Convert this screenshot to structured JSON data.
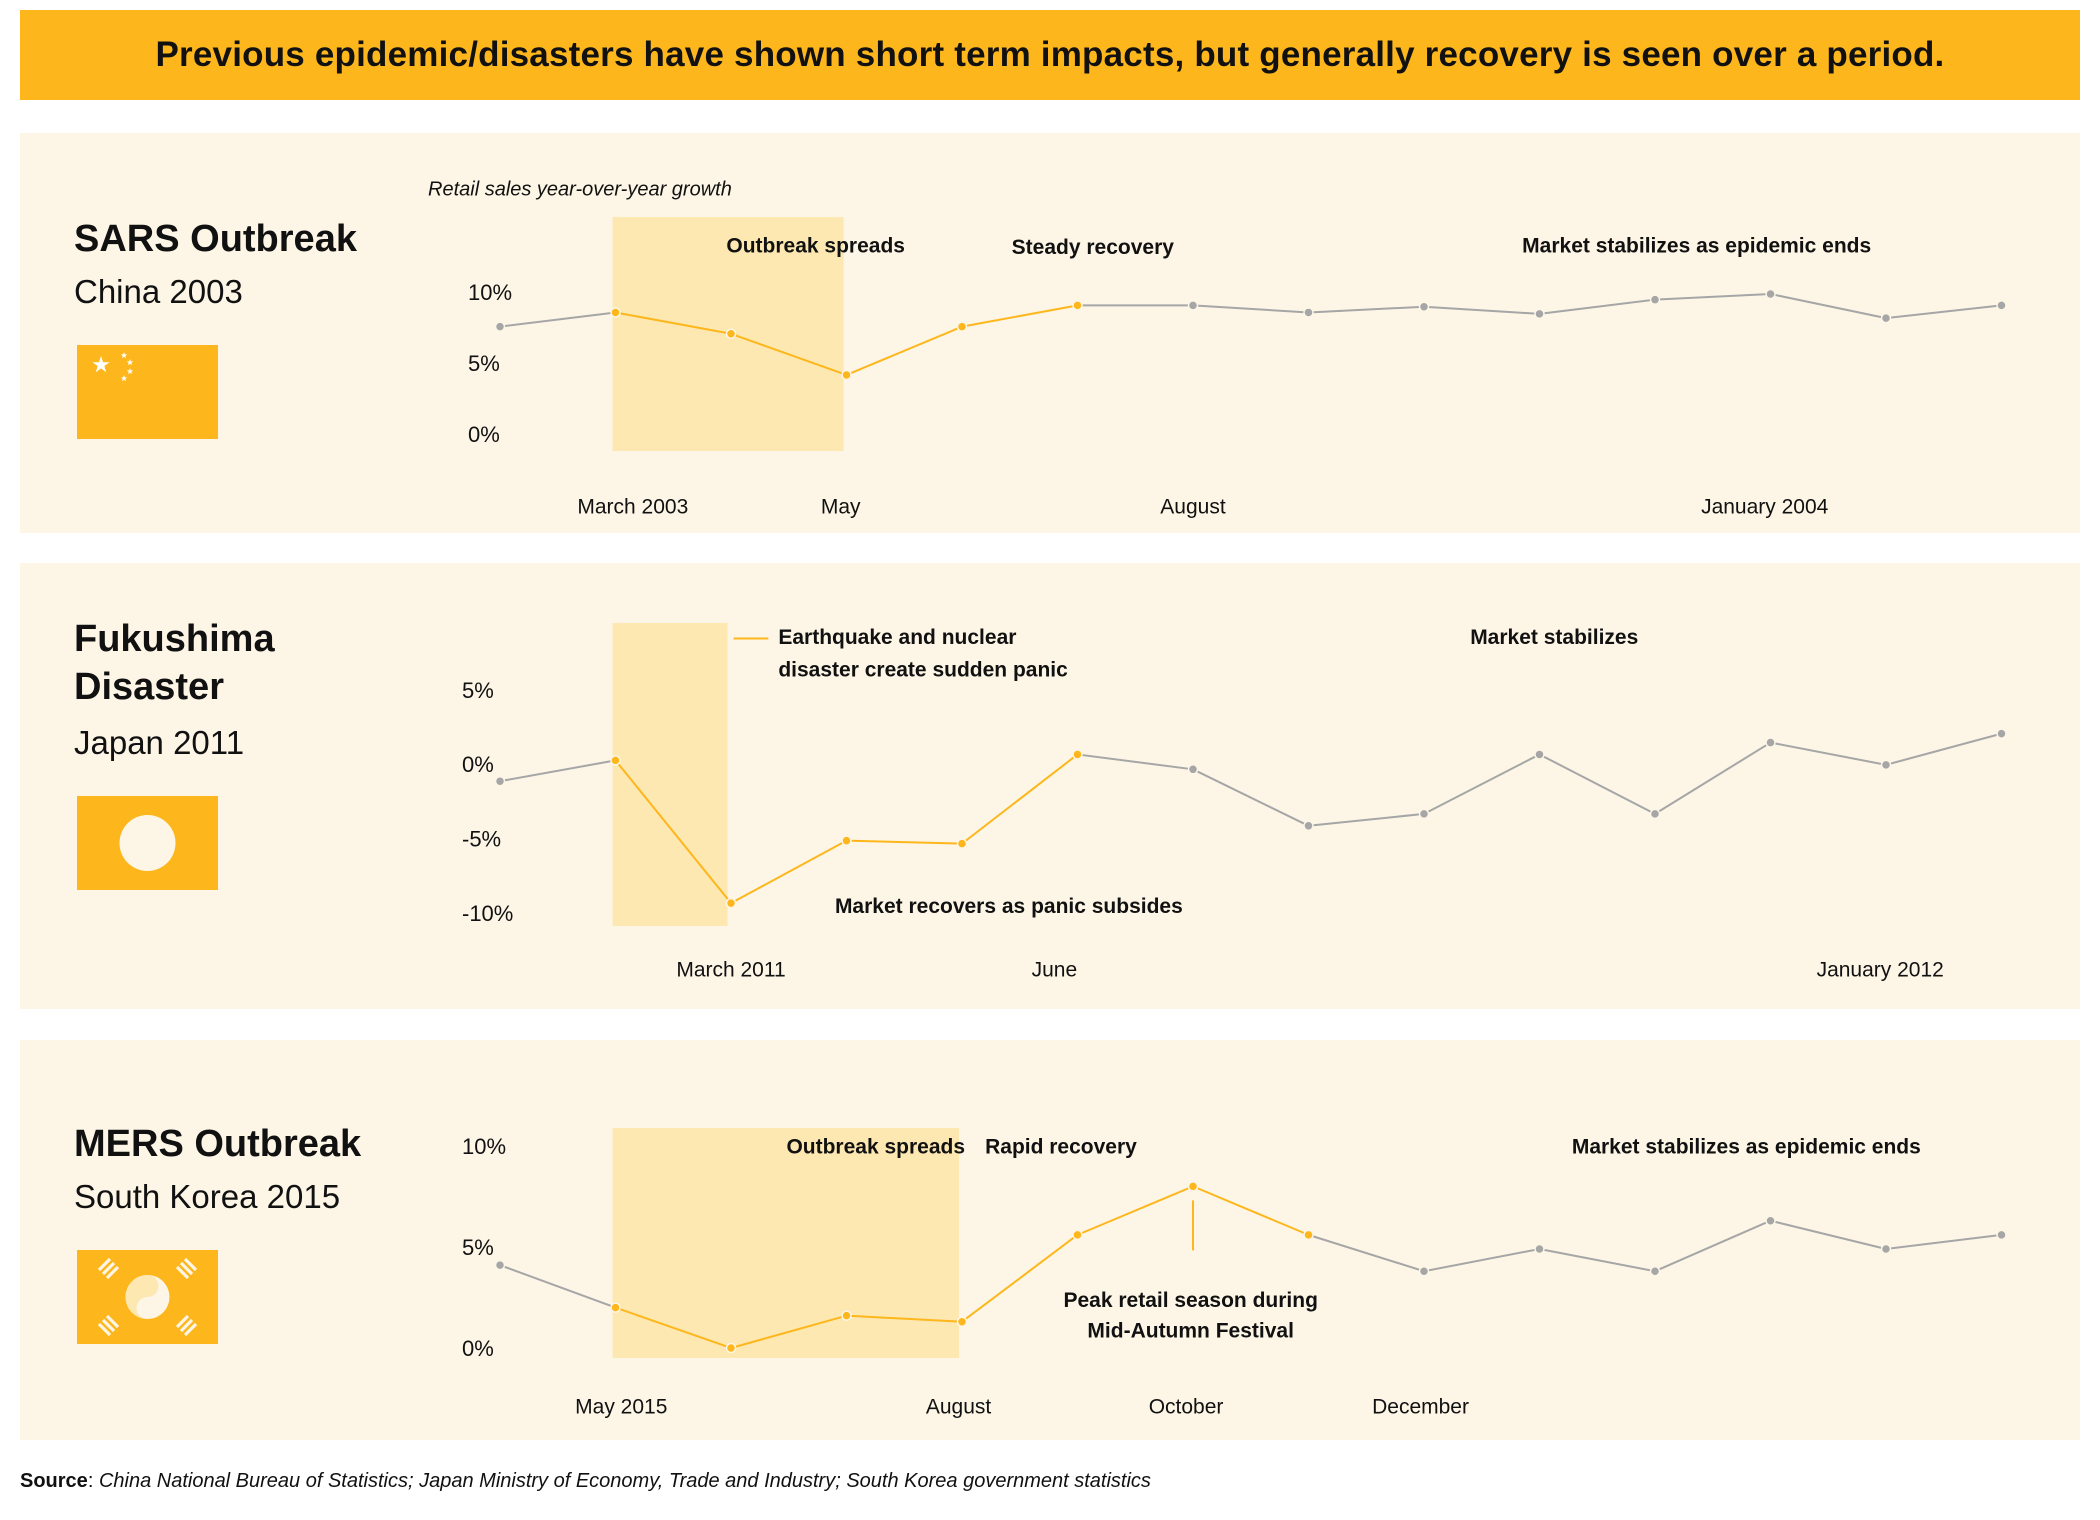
{
  "title": "Previous epidemic/disasters have shown short term impacts, but generally recovery is seen over a period.",
  "source": {
    "label": "Source",
    "text": "China National Bureau of Statistics; Japan Ministry of Economy, Trade and Industry; South Korea government statistics"
  },
  "colors": {
    "accent": "#fdb71c",
    "panel_bg": "#fdf6e7",
    "highlight": "#fde8b2",
    "gray_line": "#a6a6a6"
  },
  "panels": [
    {
      "title": "SARS Outbreak",
      "subtitle": "China 2003",
      "flag_icon": "china-flag-icon"
    },
    {
      "title": "Fukushima Disaster",
      "subtitle": "Japan 2011",
      "flag_icon": "japan-flag-icon"
    },
    {
      "title": "MERS Outbreak",
      "subtitle": "South Korea 2015",
      "flag_icon": "south-korea-flag-icon"
    }
  ],
  "chart_data": [
    {
      "type": "line",
      "id": "sars",
      "title": "SARS Outbreak",
      "ylabel": "Retail sales year-over-year growth",
      "ylim": [
        0,
        10
      ],
      "yticks": [
        0,
        5,
        10
      ],
      "ytick_labels": [
        "0%",
        "5%",
        "10%"
      ],
      "values": [
        7.7,
        8.7,
        7.2,
        4.3,
        7.7,
        9.2,
        9.2,
        8.7,
        9.1,
        8.6,
        9.6,
        10.0,
        8.3,
        9.2
      ],
      "highlight_range": [
        0.975,
        2.975
      ],
      "highlight_points": [
        1,
        5
      ],
      "x_ticks": [
        {
          "index": 1.15,
          "label": "March 2003"
        },
        {
          "index": 2.95,
          "label": "May"
        },
        {
          "index": 6.0,
          "label": "August"
        },
        {
          "index": 10.95,
          "label": "January 2004"
        }
      ],
      "annotations": [
        {
          "text": "Outbreak spreads",
          "index": 1.96,
          "y": 13.3,
          "boxed": true
        },
        {
          "text": "Steady recovery",
          "index": 4.43,
          "y": 13.2
        },
        {
          "text": "Market stabilizes as epidemic ends",
          "index": 8.85,
          "y": 13.3
        }
      ]
    },
    {
      "type": "line",
      "id": "fukushima",
      "title": "Fukushima Disaster",
      "ylim": [
        -10,
        5
      ],
      "yticks": [
        -10,
        -5,
        0,
        5
      ],
      "ytick_labels": [
        "-10%",
        "-5%",
        "0%",
        "5%"
      ],
      "values": [
        -1.0,
        0.4,
        -9.2,
        -5.0,
        -5.2,
        0.8,
        -0.2,
        -4.0,
        -3.2,
        0.8,
        -3.2,
        1.6,
        0.1,
        2.2
      ],
      "highlight_range": [
        0.975,
        1.97
      ],
      "highlight_points": [
        1,
        5
      ],
      "x_ticks": [
        {
          "index": 2.0,
          "label": "March 2011"
        },
        {
          "index": 4.8,
          "label": "June"
        },
        {
          "index": 11.95,
          "label": "January 2012"
        }
      ],
      "annotations": [
        {
          "text": "Earthquake and nuclear",
          "index": 2.41,
          "y": 8.6,
          "leader": true
        },
        {
          "text": "disaster create sudden panic",
          "index": 2.41,
          "y": 6.4
        },
        {
          "text": "Market stabilizes",
          "index": 8.4,
          "y": 8.6
        },
        {
          "text": "Market recovers as panic subsides",
          "index": 2.9,
          "y": -9.5
        }
      ]
    },
    {
      "type": "line",
      "id": "mers",
      "title": "MERS Outbreak",
      "ylim": [
        0,
        10
      ],
      "yticks": [
        0,
        5,
        10
      ],
      "ytick_labels": [
        "0%",
        "5%",
        "10%"
      ],
      "values": [
        4.2,
        2.1,
        0.1,
        1.7,
        1.4,
        5.7,
        8.1,
        5.7,
        3.9,
        5.0,
        3.9,
        6.4,
        5.0,
        5.7
      ],
      "highlight_range": [
        0.975,
        3.975
      ],
      "highlight_points": [
        1,
        7
      ],
      "x_ticks": [
        {
          "index": 1.05,
          "label": "May 2015"
        },
        {
          "index": 3.97,
          "label": "August"
        },
        {
          "index": 5.94,
          "label": "October"
        },
        {
          "index": 7.97,
          "label": "December"
        }
      ],
      "annotations": [
        {
          "text": "Outbreak spreads",
          "index": 2.48,
          "y": 10.0,
          "boxed": true
        },
        {
          "text": "Rapid recovery",
          "index": 4.2,
          "y": 10.0
        },
        {
          "text": "Market stabilizes as epidemic ends",
          "index": 9.28,
          "y": 10.0
        },
        {
          "text": "Peak retail season during",
          "index": 5.98,
          "y": 2.4,
          "anchor": "middle"
        },
        {
          "text": "Mid-Autumn Festival",
          "index": 5.98,
          "y": 0.9,
          "anchor": "middle"
        }
      ]
    }
  ]
}
